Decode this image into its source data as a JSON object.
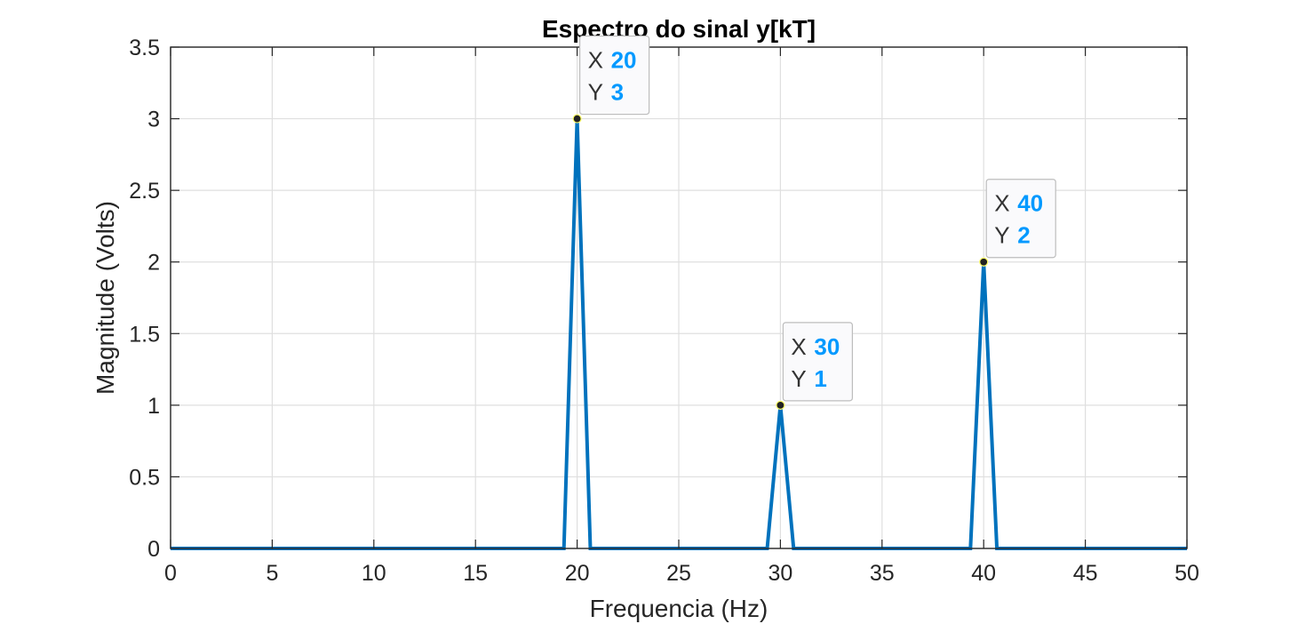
{
  "chart_data": {
    "type": "line",
    "title": "Espectro do sinal y[kT]",
    "xlabel": "Frequencia (Hz)",
    "ylabel": "Magnitude (Volts)",
    "xlim": [
      0,
      50
    ],
    "ylim": [
      0,
      3.5
    ],
    "xticks": [
      "0",
      "5",
      "10",
      "15",
      "20",
      "25",
      "30",
      "35",
      "40",
      "45",
      "50"
    ],
    "yticks": [
      "0",
      "0.5",
      "1",
      "1.5",
      "2",
      "2.5",
      "3",
      "3.5"
    ],
    "grid": true,
    "series": [
      {
        "x": [
          0,
          19.35,
          20,
          20.65,
          29.35,
          30,
          30.65,
          39.35,
          40,
          40.65,
          50
        ],
        "y": [
          0,
          0,
          3,
          0,
          0,
          1,
          0,
          0,
          2,
          0,
          0
        ],
        "color": "#0072bd"
      }
    ],
    "datatips": [
      {
        "x_key": "X",
        "x_value": "20",
        "y_key": "Y",
        "y_value": "3",
        "x": 20,
        "y": 3
      },
      {
        "x_key": "X",
        "x_value": "30",
        "y_key": "Y",
        "y_value": "1",
        "x": 30,
        "y": 1
      },
      {
        "x_key": "X",
        "x_value": "40",
        "y_key": "Y",
        "y_value": "2",
        "x": 40,
        "y": 2
      }
    ]
  },
  "colors": {
    "line": "#0072bd",
    "datatip_value": "#0099ff",
    "grid": "#dfdfdf",
    "axes": "#262626"
  }
}
